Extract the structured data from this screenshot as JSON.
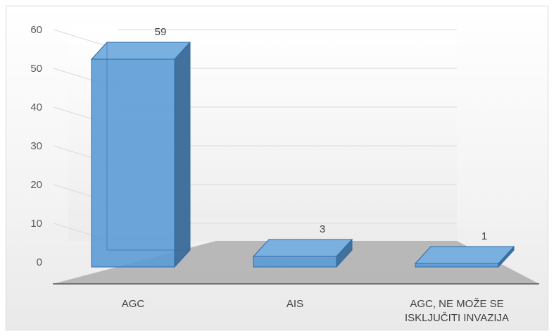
{
  "chart_data": {
    "type": "bar",
    "style": "3d-column",
    "categories": [
      [
        "AGC"
      ],
      [
        "AIS"
      ],
      [
        "AGC, NE MOŽE SE",
        "ISKLJUČITI INVAZIJA"
      ]
    ],
    "values": [
      59,
      3,
      1
    ],
    "data_labels": [
      "59",
      "3",
      "1"
    ],
    "y_ticks": [
      "0",
      "10",
      "20",
      "30",
      "40",
      "50",
      "60"
    ],
    "ylim": [
      0,
      60
    ],
    "grid": true,
    "legend": false,
    "colors": {
      "bar_front": "#5b9bd5",
      "bar_side": "#41719c",
      "bar_top": "#7ab0e0",
      "floor": "#b4b4b4",
      "gridline": "#d9d9d9",
      "axis": "#595959"
    }
  }
}
